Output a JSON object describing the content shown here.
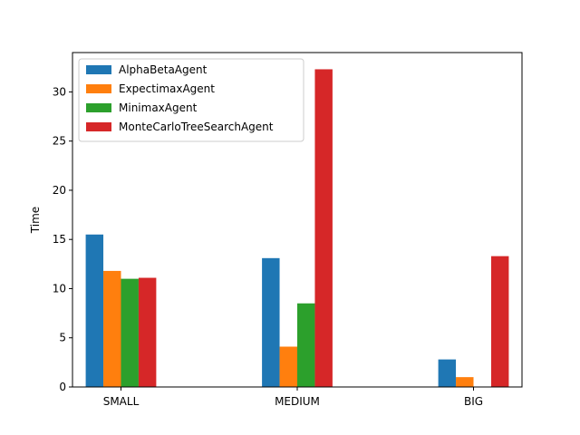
{
  "chart_data": {
    "type": "bar",
    "title": "",
    "xlabel": "",
    "ylabel": "Time",
    "categories": [
      "SMALL",
      "MEDIUM",
      "BIG"
    ],
    "ylim": [
      0,
      34
    ],
    "yticks": [
      0,
      5,
      10,
      15,
      20,
      25,
      30
    ],
    "grid": false,
    "legend_position": "top-left",
    "series": [
      {
        "name": "AlphaBetaAgent",
        "color": "#1f77b4",
        "values": [
          15.5,
          13.1,
          2.8
        ]
      },
      {
        "name": "ExpectimaxAgent",
        "color": "#ff7f0e",
        "values": [
          11.8,
          4.1,
          1.0
        ]
      },
      {
        "name": "MinimaxAgent",
        "color": "#2ca02c",
        "values": [
          11.0,
          8.5,
          0
        ]
      },
      {
        "name": "MonteCarloTreeSearchAgent",
        "color": "#d62728",
        "values": [
          11.1,
          32.3,
          13.3
        ]
      }
    ]
  }
}
